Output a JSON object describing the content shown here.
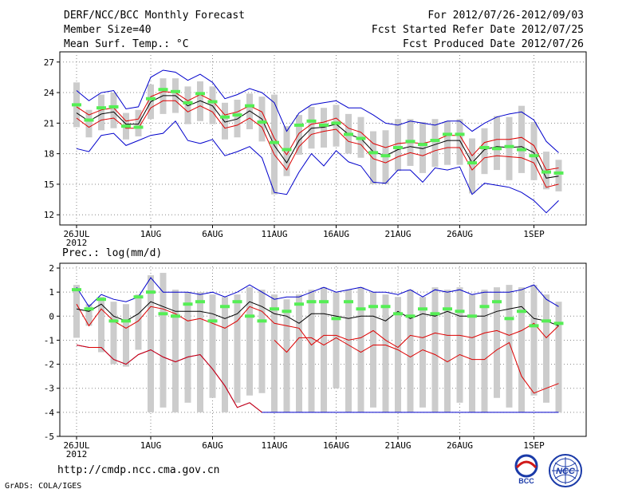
{
  "header": {
    "title": "DERF/NCC/BCC Monthly Forecast",
    "member": "Member Size=40",
    "variable": "Mean Surf. Temp.: °C",
    "period": "For 2012/07/26-2012/09/03",
    "started": "Fcst Started Refer Date 2012/07/25",
    "produced": "Fcst Produced Date 2012/07/26"
  },
  "footer": {
    "url": "http://cmdp.ncc.cma.gov.cn",
    "credit": "GrADS: COLA/IGES",
    "logo1_text": "BCC",
    "logo2_text": "NCC"
  },
  "colors": {
    "bar": "#cccccc",
    "obs": "#55ee55",
    "mean": "#000000",
    "spread": "#dd0000",
    "envelope": "#0000cc",
    "grid": "#888888"
  },
  "chart_data": [
    {
      "type": "line",
      "title": "Mean Surf. Temp.: °C",
      "xlabels": [
        "26JUL",
        "1AUG",
        "6AUG",
        "11AUG",
        "16AUG",
        "21AUG",
        "26AUG",
        "1SEP"
      ],
      "xlabel_sub": "2012",
      "xlabel_days": [
        0,
        6,
        11,
        16,
        21,
        26,
        31,
        37
      ],
      "ylim": [
        11,
        28
      ],
      "yticks": [
        12,
        15,
        18,
        21,
        24,
        27
      ],
      "days": [
        0,
        1,
        2,
        3,
        4,
        5,
        6,
        7,
        8,
        9,
        10,
        11,
        12,
        13,
        14,
        15,
        16,
        17,
        18,
        19,
        20,
        21,
        22,
        23,
        24,
        25,
        26,
        27,
        28,
        29,
        30,
        31,
        32,
        33,
        34,
        35,
        36,
        37,
        38,
        39
      ],
      "series": [
        {
          "name": "max",
          "values": [
            24.2,
            23.2,
            24.0,
            24.2,
            22.4,
            22.6,
            25.5,
            26.2,
            26.0,
            25.2,
            25.8,
            25.0,
            23.4,
            23.8,
            24.4,
            24.0,
            23.0,
            20.2,
            22.0,
            22.8,
            23.0,
            23.2,
            22.5,
            22.5,
            21.8,
            21.0,
            20.8,
            21.2,
            21.0,
            20.8,
            21.2,
            21.2,
            20.2,
            21.0,
            21.6,
            21.9,
            22.1,
            21.3,
            19.2,
            18.1
          ]
        },
        {
          "name": "upper",
          "values": [
            22.6,
            21.8,
            22.3,
            22.5,
            21.2,
            21.4,
            23.6,
            24.1,
            24.0,
            23.2,
            23.8,
            23.2,
            21.8,
            22.1,
            22.7,
            22.1,
            19.5,
            17.9,
            20.0,
            20.9,
            21.1,
            21.5,
            20.5,
            20.1,
            19.0,
            18.6,
            19.0,
            19.1,
            19.0,
            19.3,
            19.8,
            19.8,
            17.8,
            19.1,
            19.4,
            19.4,
            19.6,
            18.8,
            16.4,
            16.6
          ]
        },
        {
          "name": "mean",
          "values": [
            22.0,
            21.2,
            21.9,
            22.1,
            20.9,
            20.9,
            23.1,
            23.7,
            23.7,
            22.7,
            23.2,
            22.7,
            21.1,
            21.4,
            22.2,
            21.4,
            18.8,
            17.1,
            19.3,
            20.5,
            20.6,
            20.9,
            19.9,
            19.5,
            18.2,
            17.8,
            18.4,
            18.7,
            18.5,
            18.9,
            19.3,
            19.3,
            17.1,
            18.4,
            18.7,
            18.6,
            18.7,
            18.1,
            15.6,
            15.8
          ]
        },
        {
          "name": "lower",
          "values": [
            21.5,
            20.6,
            21.3,
            21.5,
            20.5,
            20.5,
            22.5,
            23.2,
            23.2,
            22.1,
            22.7,
            22.1,
            20.5,
            20.8,
            21.5,
            20.6,
            17.9,
            16.4,
            18.7,
            19.9,
            20.2,
            20.4,
            19.2,
            18.9,
            17.5,
            17.1,
            17.7,
            18.1,
            17.8,
            18.3,
            18.6,
            18.6,
            16.4,
            17.6,
            17.8,
            17.7,
            17.6,
            17.1,
            14.7,
            15.0
          ]
        },
        {
          "name": "min",
          "values": [
            18.5,
            18.2,
            19.8,
            20.0,
            18.8,
            19.3,
            19.8,
            20.0,
            21.2,
            19.3,
            19.0,
            19.4,
            17.8,
            18.2,
            18.7,
            17.6,
            14.2,
            14.0,
            16.2,
            18.0,
            16.8,
            18.3,
            17.2,
            16.8,
            15.2,
            15.1,
            16.4,
            16.4,
            15.2,
            16.6,
            16.4,
            16.7,
            14.0,
            15.1,
            14.9,
            14.7,
            14.2,
            13.4,
            12.2,
            13.4
          ]
        },
        {
          "name": "bar_top",
          "values": [
            25.0,
            22.3,
            23.8,
            24.0,
            22.0,
            22.3,
            24.8,
            25.4,
            25.4,
            24.6,
            25.1,
            24.6,
            23.0,
            23.3,
            23.9,
            23.6,
            23.8,
            20.7,
            21.8,
            22.6,
            22.5,
            22.8,
            21.9,
            21.6,
            20.2,
            20.3,
            21.4,
            21.4,
            21.1,
            21.4,
            21.2,
            21.4,
            19.5,
            20.5,
            21.7,
            21.6,
            22.7,
            21.1,
            18.2,
            17.4
          ]
        },
        {
          "name": "bar_bottom",
          "values": [
            20.6,
            19.6,
            20.3,
            20.5,
            19.4,
            19.7,
            21.4,
            21.9,
            22.0,
            20.9,
            21.2,
            20.9,
            19.4,
            19.6,
            20.4,
            19.2,
            14.0,
            15.8,
            17.9,
            18.5,
            18.6,
            18.7,
            18.0,
            17.6,
            15.0,
            15.0,
            16.3,
            16.8,
            16.1,
            16.7,
            16.9,
            16.9,
            14.1,
            16.0,
            16.4,
            15.4,
            16.1,
            15.4,
            14.5,
            14.3
          ]
        },
        {
          "name": "observed",
          "values": [
            22.8,
            21.3,
            22.5,
            22.6,
            20.7,
            20.6,
            23.4,
            24.3,
            24.1,
            23.0,
            23.9,
            23.1,
            21.6,
            21.8,
            22.7,
            21.1,
            19.1,
            18.4,
            20.8,
            21.2,
            20.8,
            21.0,
            19.9,
            19.5,
            18.1,
            17.8,
            18.6,
            19.2,
            18.9,
            19.3,
            19.9,
            19.9,
            17.1,
            18.6,
            18.5,
            18.7,
            18.4,
            17.8,
            16.2,
            16.1
          ]
        }
      ]
    },
    {
      "type": "line",
      "title": "Prec.: log(mm/d)",
      "xlabels": [
        "26JUL",
        "1AUG",
        "6AUG",
        "11AUG",
        "16AUG",
        "21AUG",
        "26AUG",
        "1SEP"
      ],
      "xlabel_sub": "2012",
      "xlabel_days": [
        0,
        6,
        11,
        16,
        21,
        26,
        31,
        37
      ],
      "ylim": [
        -5,
        2.2
      ],
      "yticks": [
        -5,
        -4,
        -3,
        -2,
        -1,
        0,
        1,
        2
      ],
      "days": [
        0,
        1,
        2,
        3,
        4,
        5,
        6,
        7,
        8,
        9,
        10,
        11,
        12,
        13,
        14,
        15,
        16,
        17,
        18,
        19,
        20,
        21,
        22,
        23,
        24,
        25,
        26,
        27,
        28,
        29,
        30,
        31,
        32,
        33,
        34,
        35,
        36,
        37,
        38,
        39
      ],
      "series": [
        {
          "name": "max",
          "values": [
            1.2,
            0.4,
            0.9,
            0.7,
            0.6,
            0.8,
            1.6,
            1.0,
            1.0,
            1.0,
            0.9,
            1.0,
            0.8,
            1.0,
            1.3,
            1.0,
            0.7,
            0.8,
            0.8,
            1.0,
            1.2,
            1.0,
            1.1,
            1.2,
            1.0,
            1.0,
            0.9,
            1.1,
            0.8,
            1.1,
            1.0,
            1.1,
            0.9,
            1.0,
            1.0,
            1.0,
            1.1,
            1.3,
            0.7,
            0.4
          ]
        },
        {
          "name": "upper",
          "values": [
            0.5,
            -0.4,
            0.3,
            -0.2,
            -0.5,
            -0.2,
            0.4,
            0.3,
            0.1,
            -0.2,
            -0.1,
            -0.3,
            -0.5,
            -0.2,
            0.4,
            0.2,
            -0.3,
            -0.4,
            -0.5,
            -1.2,
            -0.8,
            -0.8,
            -1.0,
            -0.9,
            -0.6,
            -1.0,
            -1.3,
            -0.8,
            -0.9,
            -0.7,
            -0.8,
            -0.8,
            -0.9,
            -0.7,
            -0.6,
            -0.8,
            -0.6,
            -0.3,
            -0.9,
            -0.4
          ]
        },
        {
          "name": "mean",
          "values": [
            0.3,
            0.2,
            0.5,
            0.0,
            -0.2,
            0.1,
            0.6,
            0.4,
            0.2,
            0.2,
            0.2,
            0.1,
            -0.1,
            0.1,
            0.6,
            0.4,
            0.1,
            0.0,
            -0.3,
            0.1,
            0.1,
            0.0,
            -0.1,
            0.0,
            0.0,
            -0.2,
            0.2,
            -0.1,
            0.1,
            0.0,
            0.2,
            0.0,
            0.0,
            0.0,
            0.2,
            0.3,
            0.4,
            -0.1,
            -0.2,
            -0.4
          ]
        },
        {
          "name": "lower",
          "values": [
            -1.2,
            -1.3,
            -1.3,
            -1.8,
            -2.0,
            -1.6,
            -1.4,
            -1.7,
            -1.9,
            -1.7,
            -1.6,
            -2.2,
            -2.9,
            -3.8,
            -3.6,
            -4.0,
            -4.0,
            -4.0,
            -4.0,
            -4.0,
            -4.0,
            -4.0,
            -4.0,
            -4.0,
            -4.0,
            -4.0,
            -4.0,
            -4.0,
            -4.0,
            -4.0,
            -4.0,
            -4.0,
            -4.0,
            -4.0,
            -4.0,
            -4.0,
            -4.0,
            -4.0,
            -4.0,
            -4.0
          ]
        },
        {
          "name": "low_visible",
          "values": [
            -1.2,
            -1.3,
            -1.3,
            -1.8,
            -2.0,
            -1.6,
            -1.4,
            -1.7,
            -1.9,
            -1.7,
            -1.6,
            -2.2,
            -2.9,
            -3.8,
            -3.6,
            -4.0,
            -1.0,
            -1.5,
            -0.9,
            -0.9,
            -1.2,
            -0.9,
            -1.2,
            -1.5,
            -1.2,
            -1.2,
            -1.4,
            -1.7,
            -1.4,
            -1.6,
            -1.9,
            -1.6,
            -1.8,
            -1.8,
            -1.4,
            -1.1,
            -2.5,
            -3.2,
            -3.0,
            -2.8
          ]
        },
        {
          "name": "bar_top",
          "values": [
            1.3,
            0.5,
            0.8,
            0.6,
            0.5,
            0.9,
            1.7,
            1.8,
            1.1,
            1.0,
            1.0,
            0.9,
            0.8,
            0.9,
            1.2,
            1.1,
            0.9,
            0.7,
            0.9,
            1.1,
            1.2,
            1.0,
            1.1,
            1.2,
            1.0,
            0.9,
            0.8,
            1.1,
            0.8,
            1.2,
            1.1,
            1.2,
            0.9,
            1.1,
            1.2,
            1.3,
            1.2,
            1.3,
            0.9,
            0.6
          ]
        },
        {
          "name": "bar_bottom",
          "values": [
            -0.9,
            -0.4,
            -1.5,
            -2.0,
            -2.1,
            -1.4,
            -4.0,
            -3.8,
            -4.0,
            -3.6,
            -4.0,
            -3.4,
            -4.0,
            -3.6,
            -3.3,
            -3.2,
            -4.0,
            -4.0,
            -4.0,
            -4.0,
            -4.0,
            -3.0,
            -4.0,
            -4.0,
            -3.8,
            -4.0,
            -4.0,
            -4.0,
            -3.8,
            -4.0,
            -4.0,
            -3.6,
            -4.0,
            -4.0,
            -3.4,
            -3.8,
            -4.0,
            -3.3,
            -3.6,
            -4.0
          ]
        },
        {
          "name": "observed",
          "values": [
            1.1,
            0.3,
            0.7,
            -0.2,
            -0.2,
            0.8,
            1.0,
            0.1,
            0.0,
            0.5,
            0.6,
            -0.2,
            0.4,
            0.6,
            0.0,
            -0.2,
            0.3,
            0.2,
            0.5,
            0.6,
            0.6,
            -0.1,
            0.6,
            0.3,
            0.4,
            0.4,
            0.1,
            0.0,
            0.3,
            0.1,
            0.3,
            0.2,
            0.0,
            0.4,
            0.6,
            -0.1,
            0.2,
            -0.4,
            -0.2,
            -0.3
          ]
        }
      ]
    }
  ]
}
